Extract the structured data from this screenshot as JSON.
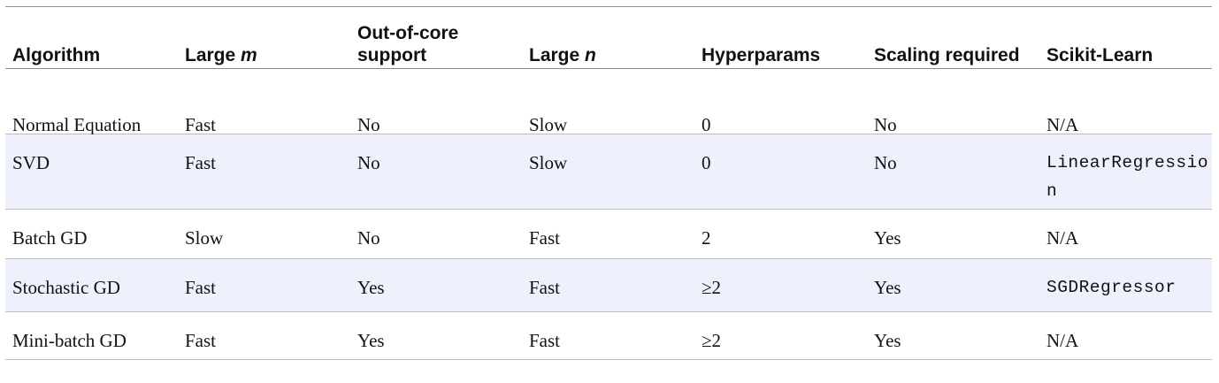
{
  "table": {
    "headers": {
      "algorithm": "Algorithm",
      "large_m_prefix": "Large ",
      "large_m_var": "m",
      "out_of_core_line1": "Out-of-core",
      "out_of_core_line2": "support",
      "large_n_prefix": "Large ",
      "large_n_var": "n",
      "hyperparams": "Hyperparams",
      "scaling_required": "Scaling required",
      "scikit_learn": "Scikit-Learn"
    },
    "rows": [
      {
        "algorithm": "Normal Equation",
        "large_m": "Fast",
        "out_of_core": "No",
        "large_n": "Slow",
        "hyperparams": "0",
        "scaling": "No",
        "scikit": "N/A"
      },
      {
        "algorithm": "SVD",
        "large_m": "Fast",
        "out_of_core": "No",
        "large_n": "Slow",
        "hyperparams": "0",
        "scaling": "No",
        "scikit": "LinearRegression"
      },
      {
        "algorithm": "Batch GD",
        "large_m": "Slow",
        "out_of_core": "No",
        "large_n": "Fast",
        "hyperparams": "2",
        "scaling": "Yes",
        "scikit": "N/A"
      },
      {
        "algorithm": "Stochastic GD",
        "large_m": "Fast",
        "out_of_core": "Yes",
        "large_n": "Fast",
        "hyperparams": "≥2",
        "scaling": "Yes",
        "scikit": "SGDRegressor"
      },
      {
        "algorithm": "Mini-batch GD",
        "large_m": "Fast",
        "out_of_core": "Yes",
        "large_n": "Fast",
        "hyperparams": "≥2",
        "scaling": "Yes",
        "scikit": "N/A"
      }
    ]
  },
  "colors": {
    "shaded_row": "#eef1fb",
    "rule": "#8c8c8c",
    "text": "#111111"
  }
}
